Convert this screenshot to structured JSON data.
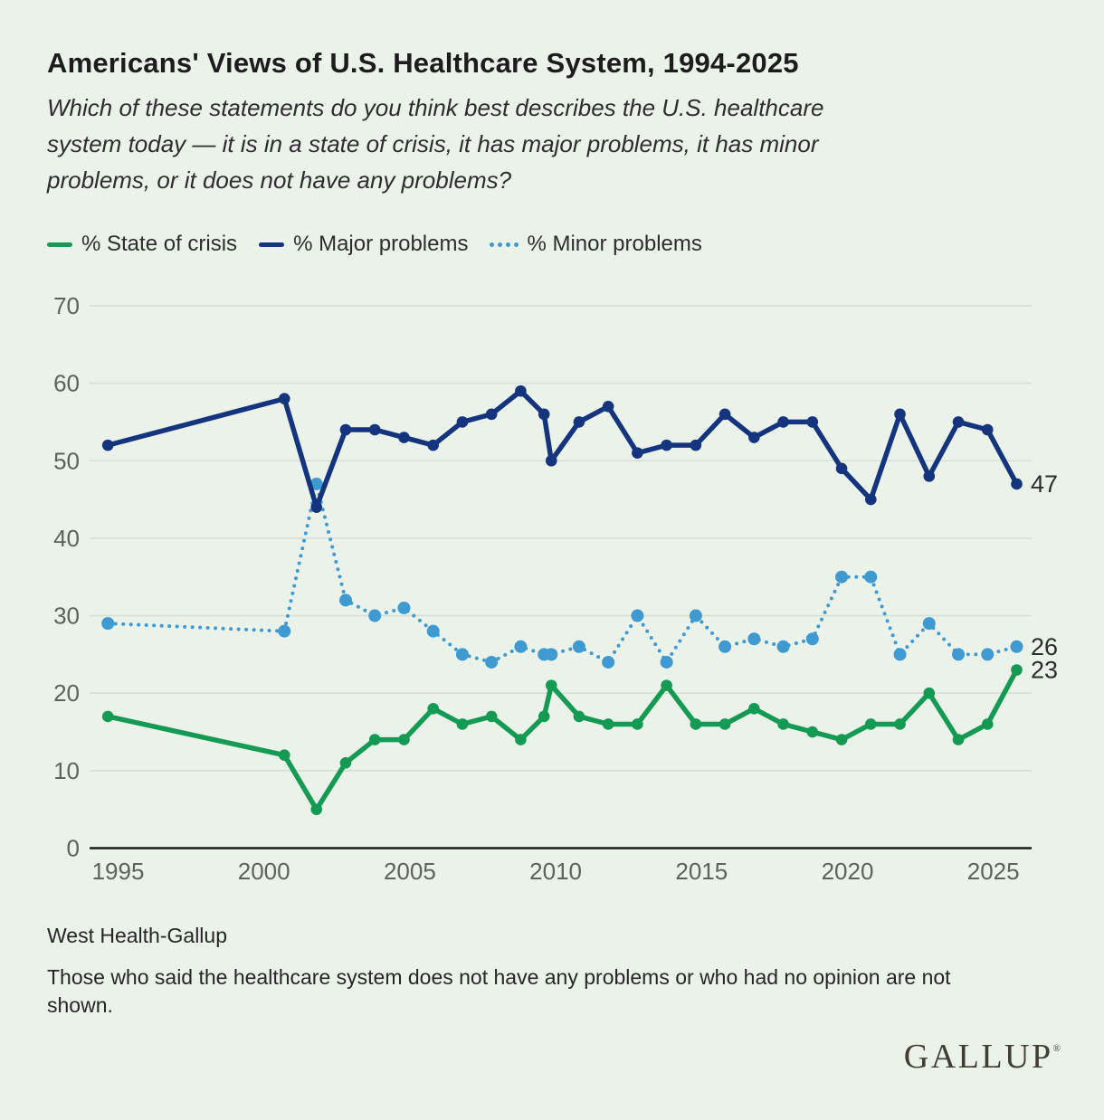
{
  "page": {
    "background": "#eaf2e9"
  },
  "header": {
    "title": "Americans' Views of U.S. Healthcare System, 1994-2025",
    "subtitle": "Which of these statements do you think best describes the U.S. healthcare\nsystem today — it is in a state of crisis, it has major problems, it has minor\nproblems, or it does not have any problems?"
  },
  "legend": {
    "items": [
      {
        "label": "% State of crisis",
        "color": "#149a53",
        "style": "solid"
      },
      {
        "label": "% Major problems",
        "color": "#14357e",
        "style": "solid"
      },
      {
        "label": "% Minor problems",
        "color": "#3f9ad1",
        "style": "dotted"
      }
    ]
  },
  "chart_data": {
    "type": "line",
    "title": "Americans' Views of U.S. Healthcare System, 1994-2025",
    "xlabel": "",
    "ylabel": "",
    "ylim": [
      0,
      70
    ],
    "xlim": [
      1994,
      2026.4
    ],
    "grid": true,
    "legend_position": "top",
    "y_ticks": [
      0,
      10,
      20,
      30,
      40,
      50,
      60,
      70
    ],
    "x_ticks": [
      1995,
      2000,
      2005,
      2010,
      2015,
      2020,
      2025
    ],
    "x": [
      1994.65,
      2000.7,
      2001.8,
      2002.8,
      2003.8,
      2004.8,
      2005.8,
      2006.8,
      2007.8,
      2008.8,
      2009.6,
      2009.85,
      2010.8,
      2011.8,
      2012.8,
      2013.8,
      2014.8,
      2015.8,
      2016.8,
      2017.8,
      2018.8,
      2019.8,
      2020.8,
      2021.8,
      2022.8,
      2023.8,
      2024.8,
      2025.8
    ],
    "series": [
      {
        "name": "% Minor problems",
        "key": "minor",
        "color": "#3f9ad1",
        "dotted": true,
        "end_label": "26",
        "values": [
          29,
          28,
          47,
          32,
          30,
          31,
          28,
          25,
          24,
          26,
          25,
          25,
          26,
          24,
          30,
          24,
          30,
          26,
          27,
          26,
          27,
          35,
          35,
          25,
          29,
          25,
          25,
          26
        ]
      },
      {
        "name": "% State of crisis",
        "key": "crisis",
        "color": "#149a53",
        "dotted": false,
        "end_label": "23",
        "values": [
          17,
          12,
          5,
          11,
          14,
          14,
          18,
          16,
          17,
          14,
          17,
          21,
          17,
          16,
          16,
          21,
          16,
          16,
          18,
          16,
          15,
          14,
          16,
          16,
          20,
          14,
          16,
          23
        ]
      },
      {
        "name": "% Major problems",
        "key": "major",
        "color": "#14357e",
        "dotted": false,
        "end_label": "47",
        "values": [
          52,
          58,
          44,
          54,
          54,
          53,
          52,
          55,
          56,
          59,
          56,
          50,
          55,
          57,
          51,
          52,
          52,
          56,
          53,
          55,
          55,
          49,
          45,
          56,
          48,
          55,
          54,
          47
        ]
      }
    ],
    "colors": {
      "grid_line": "#d8e0d6",
      "axis_line": "#1b1b1b",
      "tick_label": "#5f625c",
      "end_label": "#2c2c2c"
    }
  },
  "footer": {
    "source": "West Health-Gallup",
    "note": "Those who said the healthcare system does not have any problems or who had no opinion are not\nshown.",
    "brand": "GALLUP",
    "brand_mark": "®"
  }
}
